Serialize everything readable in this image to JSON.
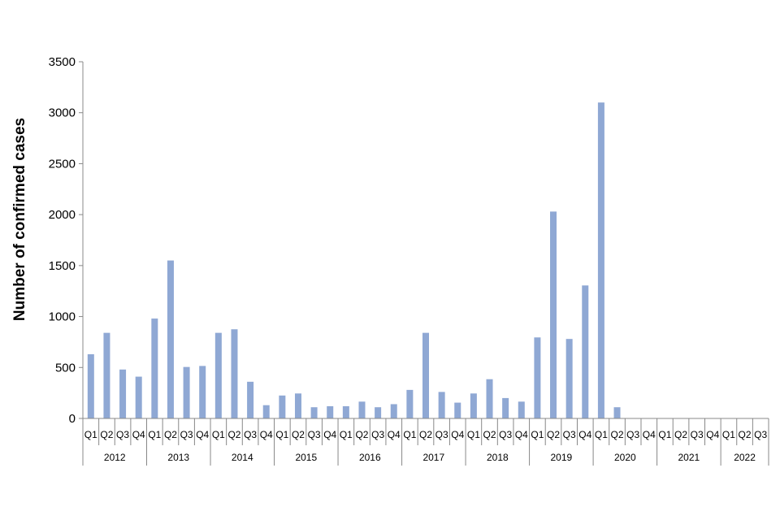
{
  "chart_data": {
    "type": "bar",
    "title": "",
    "xlabel": "",
    "ylabel": "Number of confirmed cases",
    "ylim": [
      0,
      3500
    ],
    "yticks": [
      0,
      500,
      1000,
      1500,
      2000,
      2500,
      3000,
      3500
    ],
    "grid": false,
    "legend": "none",
    "bar_color": "#8FA8D4",
    "groups": [
      {
        "label": "2012",
        "quarters": [
          "Q1",
          "Q2",
          "Q3",
          "Q4"
        ]
      },
      {
        "label": "2013",
        "quarters": [
          "Q1",
          "Q2",
          "Q3",
          "Q4"
        ]
      },
      {
        "label": "2014",
        "quarters": [
          "Q1",
          "Q2",
          "Q3",
          "Q4"
        ]
      },
      {
        "label": "2015",
        "quarters": [
          "Q1",
          "Q2",
          "Q3",
          "Q4"
        ]
      },
      {
        "label": "2016",
        "quarters": [
          "Q1",
          "Q2",
          "Q3",
          "Q4"
        ]
      },
      {
        "label": "2017",
        "quarters": [
          "Q1",
          "Q2",
          "Q3",
          "Q4"
        ]
      },
      {
        "label": "2018",
        "quarters": [
          "Q1",
          "Q2",
          "Q3",
          "Q4"
        ]
      },
      {
        "label": "2019",
        "quarters": [
          "Q1",
          "Q2",
          "Q3",
          "Q4"
        ]
      },
      {
        "label": "2020",
        "quarters": [
          "Q1",
          "Q2",
          "Q3",
          "Q4"
        ]
      },
      {
        "label": "2021",
        "quarters": [
          "Q1",
          "Q2",
          "Q3",
          "Q4"
        ]
      },
      {
        "label": "2022",
        "quarters": [
          "Q1",
          "Q2",
          "Q3"
        ]
      }
    ],
    "values": [
      630,
      840,
      480,
      410,
      980,
      1550,
      505,
      515,
      840,
      875,
      360,
      130,
      225,
      245,
      110,
      120,
      120,
      165,
      110,
      140,
      280,
      840,
      260,
      155,
      245,
      385,
      200,
      165,
      795,
      2030,
      780,
      1305,
      3100,
      110,
      0,
      0,
      0,
      0,
      0,
      0,
      0,
      0,
      0
    ]
  }
}
